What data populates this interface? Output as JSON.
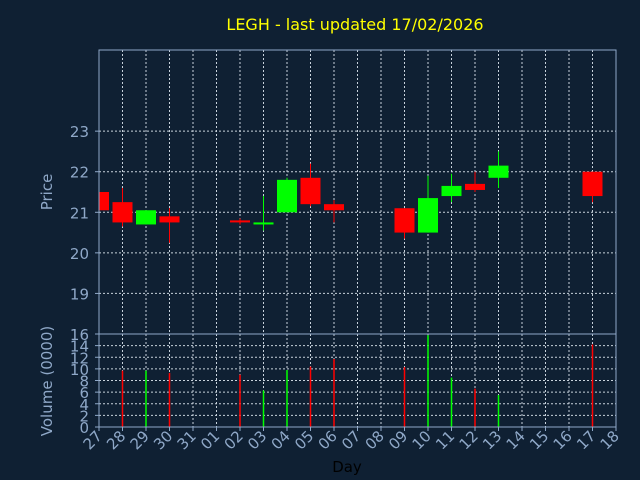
{
  "title": "LEGH - last updated 17/02/2026",
  "colors": {
    "background": "#0f2033",
    "frame": "#8fa8c8",
    "grid": "#c8d2dc",
    "label": "#8fa8c8",
    "title": "#ffff00",
    "xlabel": "#000000",
    "up": "#00ff00",
    "down": "#ff0000"
  },
  "chart_data": [
    {
      "type": "candlestick",
      "ylabel": "Price",
      "ylim": [
        18,
        25
      ],
      "yticks": [
        19,
        20,
        21,
        22,
        23
      ],
      "x": [
        "27",
        "28",
        "29",
        "30",
        "31",
        "01",
        "02",
        "03",
        "04",
        "05",
        "06",
        "07",
        "08",
        "09",
        "10",
        "11",
        "12",
        "13",
        "14",
        "15",
        "16",
        "17",
        "18"
      ],
      "candles": [
        {
          "x": "27",
          "open": 21.5,
          "high": 21.5,
          "low": 21.0,
          "close": 21.05
        },
        {
          "x": "28",
          "open": 21.25,
          "high": 21.6,
          "low": 20.65,
          "close": 20.75
        },
        {
          "x": "29",
          "open": 20.7,
          "high": 21.05,
          "low": 20.7,
          "close": 21.05
        },
        {
          "x": "30",
          "open": 20.9,
          "high": 21.1,
          "low": 20.25,
          "close": 20.75
        },
        {
          "x": "02",
          "open": 20.8,
          "high": 20.85,
          "low": 20.7,
          "close": 20.75
        },
        {
          "x": "03",
          "open": 20.7,
          "high": 21.4,
          "low": 20.55,
          "close": 20.75
        },
        {
          "x": "04",
          "open": 21.0,
          "high": 21.85,
          "low": 21.0,
          "close": 21.8
        },
        {
          "x": "05",
          "open": 21.85,
          "high": 22.2,
          "low": 21.15,
          "close": 21.2
        },
        {
          "x": "06",
          "open": 21.2,
          "high": 21.3,
          "low": 20.75,
          "close": 21.05
        },
        {
          "x": "09",
          "open": 21.1,
          "high": 21.1,
          "low": 20.35,
          "close": 20.5
        },
        {
          "x": "10",
          "open": 20.5,
          "high": 21.9,
          "low": 20.5,
          "close": 21.35
        },
        {
          "x": "11",
          "open": 21.4,
          "high": 21.95,
          "low": 21.25,
          "close": 21.65
        },
        {
          "x": "12",
          "open": 21.7,
          "high": 22.0,
          "low": 21.5,
          "close": 21.55
        },
        {
          "x": "13",
          "open": 21.85,
          "high": 22.5,
          "low": 21.6,
          "close": 22.15
        },
        {
          "x": "17",
          "open": 22.0,
          "high": 22.0,
          "low": 21.25,
          "close": 21.4
        }
      ]
    },
    {
      "type": "bar",
      "ylabel": "Volume (0000)",
      "xlabel": "Day",
      "ylim": [
        0,
        16
      ],
      "yticks": [
        0,
        2,
        4,
        6,
        8,
        10,
        12,
        14,
        16
      ],
      "x": [
        "27",
        "28",
        "29",
        "30",
        "31",
        "01",
        "02",
        "03",
        "04",
        "05",
        "06",
        "07",
        "08",
        "09",
        "10",
        "11",
        "12",
        "13",
        "14",
        "15",
        "16",
        "17",
        "18"
      ],
      "bars": [
        {
          "x": "28",
          "value": 9.7,
          "direction": "down"
        },
        {
          "x": "29",
          "value": 9.7,
          "direction": "up"
        },
        {
          "x": "30",
          "value": 9.3,
          "direction": "down"
        },
        {
          "x": "02",
          "value": 9.0,
          "direction": "down"
        },
        {
          "x": "03",
          "value": 6.3,
          "direction": "up"
        },
        {
          "x": "04",
          "value": 9.8,
          "direction": "up"
        },
        {
          "x": "05",
          "value": 10.4,
          "direction": "down"
        },
        {
          "x": "06",
          "value": 11.7,
          "direction": "down"
        },
        {
          "x": "09",
          "value": 10.3,
          "direction": "down"
        },
        {
          "x": "10",
          "value": 15.8,
          "direction": "up"
        },
        {
          "x": "11",
          "value": 8.5,
          "direction": "up"
        },
        {
          "x": "12",
          "value": 6.6,
          "direction": "down"
        },
        {
          "x": "13",
          "value": 5.5,
          "direction": "up"
        },
        {
          "x": "17",
          "value": 14.2,
          "direction": "down"
        }
      ]
    }
  ]
}
